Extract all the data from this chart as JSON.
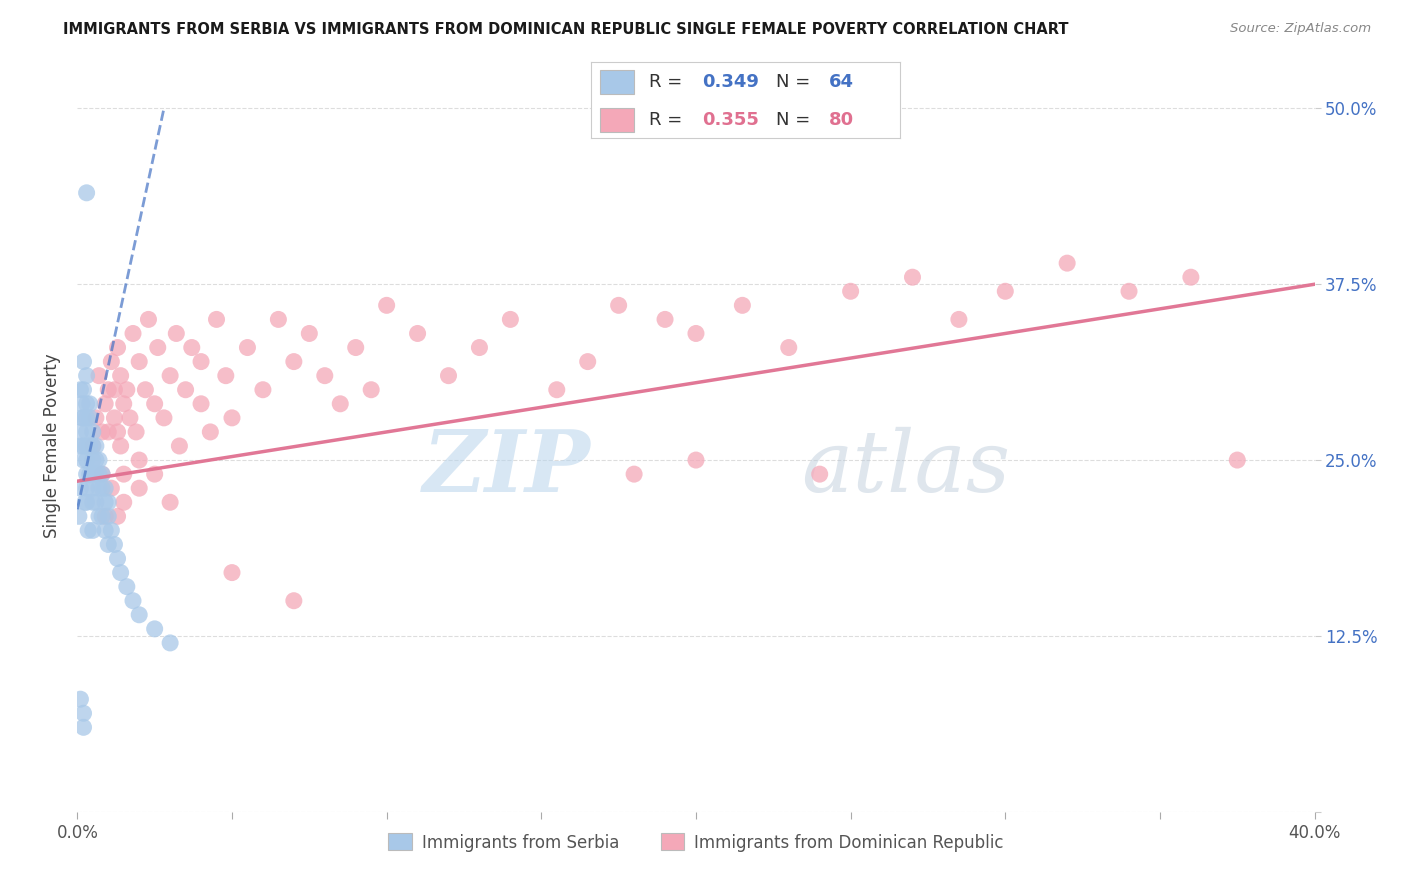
{
  "title": "IMMIGRANTS FROM SERBIA VS IMMIGRANTS FROM DOMINICAN REPUBLIC SINGLE FEMALE POVERTY CORRELATION CHART",
  "source": "Source: ZipAtlas.com",
  "xlabel_serbia": "Immigrants from Serbia",
  "xlabel_dr": "Immigrants from Dominican Republic",
  "ylabel": "Single Female Poverty",
  "xlim": [
    0.0,
    0.4
  ],
  "ylim": [
    0.0,
    0.52
  ],
  "R_serbia": 0.349,
  "N_serbia": 64,
  "R_dr": 0.355,
  "N_dr": 80,
  "color_serbia": "#a8c8e8",
  "color_dr": "#f4a8b8",
  "color_serbia_line": "#4472c4",
  "color_dr_line": "#e07090",
  "color_serbia_text": "#4472c4",
  "color_dr_text": "#e07090",
  "watermark_zip": "ZIP",
  "watermark_atlas": "atlas",
  "serbia_x": [
    0.0005,
    0.001,
    0.001,
    0.001,
    0.001,
    0.0015,
    0.0015,
    0.002,
    0.002,
    0.002,
    0.002,
    0.002,
    0.0025,
    0.003,
    0.003,
    0.003,
    0.003,
    0.003,
    0.003,
    0.003,
    0.003,
    0.003,
    0.0035,
    0.004,
    0.004,
    0.004,
    0.004,
    0.005,
    0.005,
    0.005,
    0.005,
    0.005,
    0.005,
    0.005,
    0.006,
    0.006,
    0.006,
    0.006,
    0.007,
    0.007,
    0.007,
    0.007,
    0.008,
    0.008,
    0.008,
    0.009,
    0.009,
    0.009,
    0.01,
    0.01,
    0.01,
    0.011,
    0.012,
    0.013,
    0.014,
    0.016,
    0.018,
    0.02,
    0.025,
    0.03,
    0.003,
    0.001,
    0.002,
    0.002
  ],
  "serbia_y": [
    0.21,
    0.3,
    0.27,
    0.26,
    0.23,
    0.29,
    0.28,
    0.32,
    0.3,
    0.28,
    0.26,
    0.25,
    0.22,
    0.31,
    0.29,
    0.28,
    0.27,
    0.26,
    0.25,
    0.24,
    0.23,
    0.22,
    0.2,
    0.29,
    0.28,
    0.26,
    0.24,
    0.27,
    0.26,
    0.25,
    0.24,
    0.23,
    0.22,
    0.2,
    0.26,
    0.25,
    0.24,
    0.22,
    0.25,
    0.24,
    0.23,
    0.21,
    0.24,
    0.23,
    0.21,
    0.23,
    0.22,
    0.2,
    0.22,
    0.21,
    0.19,
    0.2,
    0.19,
    0.18,
    0.17,
    0.16,
    0.15,
    0.14,
    0.13,
    0.12,
    0.44,
    0.08,
    0.07,
    0.06
  ],
  "dr_x": [
    0.005,
    0.006,
    0.007,
    0.008,
    0.009,
    0.01,
    0.01,
    0.011,
    0.012,
    0.012,
    0.013,
    0.013,
    0.014,
    0.014,
    0.015,
    0.015,
    0.016,
    0.017,
    0.018,
    0.019,
    0.02,
    0.02,
    0.022,
    0.023,
    0.025,
    0.026,
    0.028,
    0.03,
    0.032,
    0.033,
    0.035,
    0.037,
    0.04,
    0.04,
    0.043,
    0.045,
    0.048,
    0.05,
    0.055,
    0.06,
    0.065,
    0.07,
    0.075,
    0.08,
    0.085,
    0.09,
    0.095,
    0.1,
    0.11,
    0.12,
    0.13,
    0.14,
    0.155,
    0.165,
    0.175,
    0.19,
    0.2,
    0.215,
    0.23,
    0.25,
    0.27,
    0.285,
    0.3,
    0.32,
    0.34,
    0.36,
    0.015,
    0.02,
    0.025,
    0.03,
    0.008,
    0.009,
    0.011,
    0.013,
    0.05,
    0.07,
    0.18,
    0.24,
    0.2,
    0.375
  ],
  "dr_y": [
    0.26,
    0.28,
    0.31,
    0.27,
    0.29,
    0.3,
    0.27,
    0.32,
    0.28,
    0.3,
    0.33,
    0.27,
    0.31,
    0.26,
    0.29,
    0.24,
    0.3,
    0.28,
    0.34,
    0.27,
    0.32,
    0.25,
    0.3,
    0.35,
    0.29,
    0.33,
    0.28,
    0.31,
    0.34,
    0.26,
    0.3,
    0.33,
    0.29,
    0.32,
    0.27,
    0.35,
    0.31,
    0.28,
    0.33,
    0.3,
    0.35,
    0.32,
    0.34,
    0.31,
    0.29,
    0.33,
    0.3,
    0.36,
    0.34,
    0.31,
    0.33,
    0.35,
    0.3,
    0.32,
    0.36,
    0.35,
    0.34,
    0.36,
    0.33,
    0.37,
    0.38,
    0.35,
    0.37,
    0.39,
    0.37,
    0.38,
    0.22,
    0.23,
    0.24,
    0.22,
    0.24,
    0.21,
    0.23,
    0.21,
    0.17,
    0.15,
    0.24,
    0.24,
    0.25,
    0.25
  ]
}
